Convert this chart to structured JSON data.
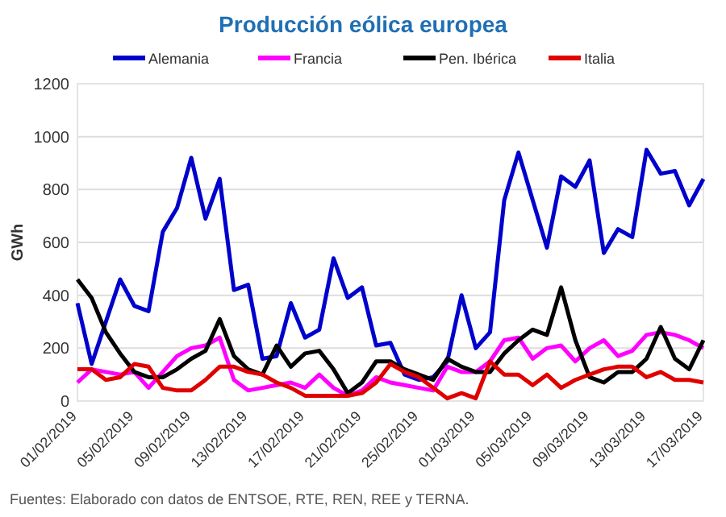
{
  "chart_data": {
    "type": "line",
    "title": "Producción eólica europea",
    "ylabel": "GWh",
    "x": [
      "2019-02-01",
      "2019-02-02",
      "2019-02-03",
      "2019-02-04",
      "2019-02-05",
      "2019-02-06",
      "2019-02-07",
      "2019-02-08",
      "2019-02-09",
      "2019-02-10",
      "2019-02-11",
      "2019-02-12",
      "2019-02-13",
      "2019-02-14",
      "2019-02-15",
      "2019-02-16",
      "2019-02-17",
      "2019-02-18",
      "2019-02-19",
      "2019-02-20",
      "2019-02-21",
      "2019-02-22",
      "2019-02-23",
      "2019-02-24",
      "2019-02-25",
      "2019-02-26",
      "2019-02-27",
      "2019-02-28",
      "2019-03-01",
      "2019-03-02",
      "2019-03-03",
      "2019-03-04",
      "2019-03-05",
      "2019-03-06",
      "2019-03-07",
      "2019-03-08",
      "2019-03-09",
      "2019-03-10",
      "2019-03-11",
      "2019-03-12",
      "2019-03-13",
      "2019-03-14",
      "2019-03-15",
      "2019-03-16",
      "2019-03-17"
    ],
    "xlim": [
      "2019-02-01",
      "2019-03-17"
    ],
    "xticks": [
      {
        "value": "2019-02-01",
        "label": "01/02/2019"
      },
      {
        "value": "2019-02-05",
        "label": "05/02/2019"
      },
      {
        "value": "2019-02-09",
        "label": "09/02/2019"
      },
      {
        "value": "2019-02-13",
        "label": "13/02/2019"
      },
      {
        "value": "2019-02-17",
        "label": "17/02/2019"
      },
      {
        "value": "2019-02-21",
        "label": "21/02/2019"
      },
      {
        "value": "2019-02-25",
        "label": "25/02/2019"
      },
      {
        "value": "2019-03-01",
        "label": "01/03/2019"
      },
      {
        "value": "2019-03-05",
        "label": "05/03/2019"
      },
      {
        "value": "2019-03-09",
        "label": "09/03/2019"
      },
      {
        "value": "2019-03-13",
        "label": "13/03/2019"
      },
      {
        "value": "2019-03-17",
        "label": "17/03/2019"
      }
    ],
    "ylim": [
      0,
      1200
    ],
    "yticks": [
      0,
      200,
      400,
      600,
      800,
      1000,
      1200
    ],
    "grid": "y",
    "legend": "top",
    "line_style": "solid",
    "series": [
      {
        "name": "Alemania",
        "color": "#0000cc",
        "values": [
          370,
          140,
          300,
          460,
          360,
          340,
          640,
          730,
          920,
          690,
          840,
          420,
          440,
          160,
          170,
          370,
          240,
          270,
          540,
          390,
          430,
          210,
          220,
          100,
          80,
          90,
          150,
          400,
          200,
          260,
          760,
          940,
          760,
          580,
          850,
          810,
          910,
          560,
          650,
          620,
          950,
          860,
          870,
          740,
          840
        ]
      },
      {
        "name": "Francia",
        "color": "#ff00ff",
        "values": [
          70,
          120,
          110,
          100,
          110,
          50,
          110,
          170,
          200,
          210,
          240,
          80,
          40,
          50,
          60,
          70,
          50,
          100,
          50,
          20,
          40,
          90,
          70,
          60,
          50,
          40,
          130,
          110,
          110,
          150,
          230,
          240,
          160,
          200,
          210,
          150,
          200,
          230,
          170,
          190,
          250,
          260,
          250,
          230,
          200
        ]
      },
      {
        "name": "Pen. Ibérica",
        "color": "#000000",
        "values": [
          460,
          390,
          260,
          180,
          110,
          90,
          90,
          120,
          160,
          190,
          310,
          170,
          120,
          100,
          210,
          130,
          180,
          190,
          120,
          30,
          70,
          150,
          150,
          120,
          100,
          80,
          160,
          130,
          110,
          110,
          180,
          230,
          270,
          250,
          430,
          230,
          90,
          70,
          110,
          110,
          160,
          280,
          160,
          120,
          230
        ]
      },
      {
        "name": "Italia",
        "color": "#e00000",
        "values": [
          120,
          120,
          80,
          90,
          140,
          130,
          50,
          40,
          40,
          80,
          130,
          130,
          110,
          100,
          70,
          50,
          20,
          20,
          20,
          20,
          30,
          70,
          140,
          110,
          90,
          50,
          10,
          30,
          10,
          150,
          100,
          100,
          60,
          100,
          50,
          80,
          100,
          120,
          130,
          130,
          90,
          110,
          80,
          80,
          70
        ]
      }
    ],
    "annotations": [
      "Fuentes: Elaborado con datos de ENTSOE, RTE, REN, REE y TERNA."
    ]
  }
}
